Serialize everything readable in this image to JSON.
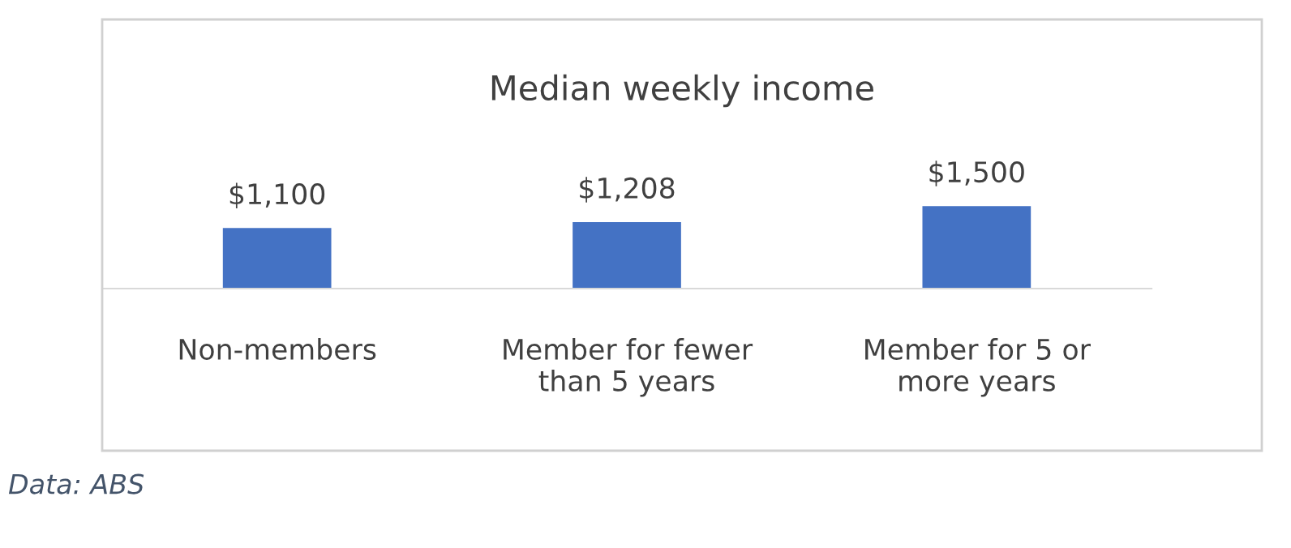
{
  "chart_data": {
    "type": "bar",
    "title": "Median weekly income",
    "categories": [
      "Non-members",
      "Member for fewer\nthan 5 years",
      "Member for 5 or\nmore years"
    ],
    "values": [
      1100,
      1208,
      1500
    ],
    "color": "#4472c4",
    "value_labels": [
      "$1,100",
      "$1,208",
      "$1,500"
    ],
    "grid": false,
    "legend": false,
    "annotations": [
      "Data: ABS"
    ]
  }
}
